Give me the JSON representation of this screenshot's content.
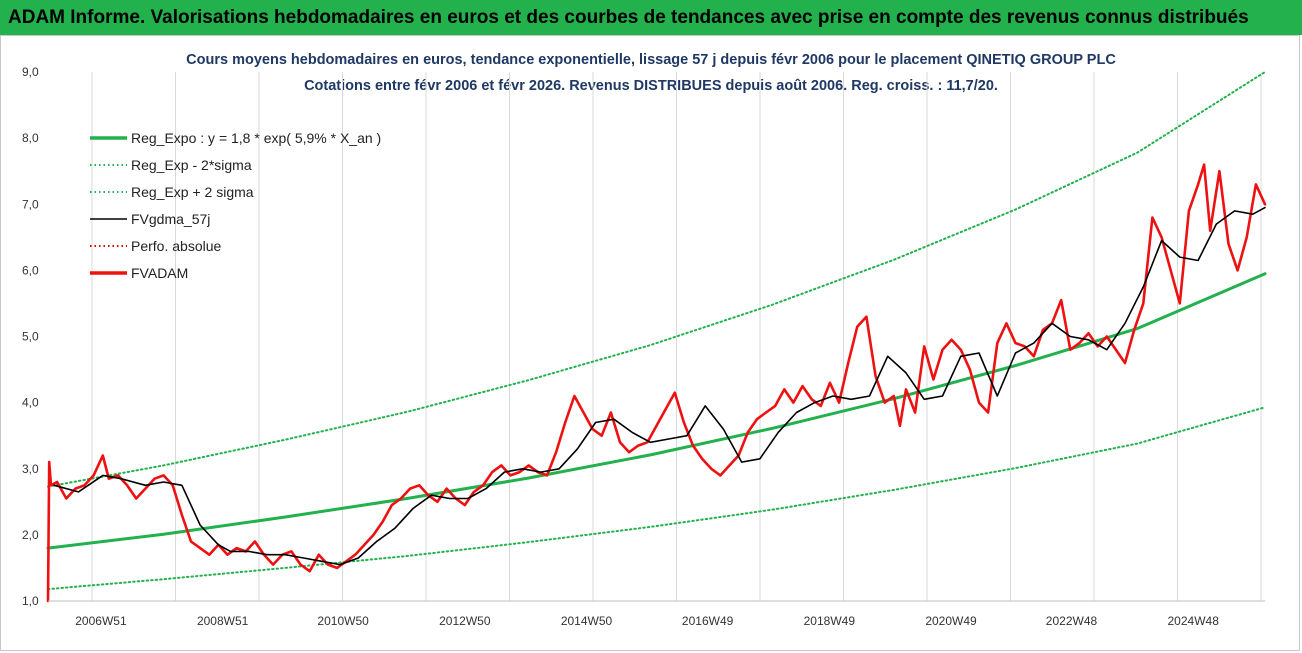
{
  "header": {
    "title": "ADAM Informe. Valorisations hebdomadaires en euros et des courbes de tendances avec prise en compte des revenus connus distribués"
  },
  "chart_data": {
    "type": "line",
    "title": "Cours moyens hebdomadaires en euros, tendance exponentielle, lissage 57 j depuis févr 2006 pour le placement QINETIQ GROUP PLC",
    "subtitle": "Cotations entre févr 2006 et févr 2026. Revenus DISTRIBUES depuis août 2006. Reg. croiss. : 11,7/20.",
    "xlabel": "",
    "ylabel": "",
    "ylim": [
      1.0,
      9.0
    ],
    "xlim": [
      2006.1,
      2026.1
    ],
    "yticks": [
      "1,0",
      "2,0",
      "3,0",
      "4,0",
      "5,0",
      "6,0",
      "7,0",
      "8,0",
      "9,0"
    ],
    "xticks": [
      {
        "label": "2006W51",
        "x": 2006.97
      },
      {
        "label": "2008W51",
        "x": 2008.97
      },
      {
        "label": "2010W50",
        "x": 2010.95
      },
      {
        "label": "2012W50",
        "x": 2012.95
      },
      {
        "label": "2014W50",
        "x": 2014.95
      },
      {
        "label": "2016W49",
        "x": 2016.94
      },
      {
        "label": "2018W49",
        "x": 2018.94
      },
      {
        "label": "2020W49",
        "x": 2020.94
      },
      {
        "label": "2022W48",
        "x": 2022.92
      },
      {
        "label": "2024W48",
        "x": 2024.92
      }
    ],
    "grid": "vertical",
    "legend_position": "top-left",
    "colors": {
      "reg_expo": "#22b14c",
      "sigma_bands": "#22b14c",
      "fvgdma": "#000000",
      "perfo": "#e00000",
      "fvadam": "#ee1111",
      "gridline": "#d9d9d9"
    },
    "series": [
      {
        "name": "Reg_Expo : y = 1,8 * exp( 5,9% *  X_an )",
        "style": "solid-thick",
        "color": "#22b14c",
        "x": [
          2006.1,
          2008,
          2010,
          2012,
          2014,
          2016,
          2018,
          2020,
          2022,
          2024,
          2026.1
        ],
        "y": [
          1.8,
          2.01,
          2.27,
          2.55,
          2.86,
          3.21,
          3.61,
          4.06,
          4.56,
          5.12,
          5.95
        ]
      },
      {
        "name": "Reg_Exp - 2*sigma",
        "style": "dotted",
        "color": "#22b14c",
        "x": [
          2006.1,
          2008,
          2010,
          2012,
          2014,
          2016,
          2018,
          2020,
          2022,
          2024,
          2026.1
        ],
        "y": [
          1.18,
          1.33,
          1.5,
          1.68,
          1.89,
          2.12,
          2.38,
          2.68,
          3.01,
          3.38,
          3.93
        ]
      },
      {
        "name": "Reg_Exp + 2 sigma",
        "style": "dotted",
        "color": "#22b14c",
        "x": [
          2006.1,
          2008,
          2010,
          2012,
          2014,
          2016,
          2018,
          2020,
          2022,
          2024,
          2026.1
        ],
        "y": [
          2.73,
          3.05,
          3.44,
          3.86,
          4.34,
          4.87,
          5.48,
          6.16,
          6.92,
          7.78,
          9.0
        ]
      },
      {
        "name": "FVgdma_57j",
        "style": "solid",
        "color": "#000000",
        "x": [
          2006.2,
          2006.6,
          2007.0,
          2007.3,
          2007.7,
          2008.0,
          2008.3,
          2008.6,
          2008.9,
          2009.1,
          2009.4,
          2009.7,
          2010.0,
          2010.3,
          2010.6,
          2010.9,
          2011.2,
          2011.5,
          2011.8,
          2012.1,
          2012.4,
          2012.7,
          2013.0,
          2013.3,
          2013.6,
          2013.9,
          2014.2,
          2014.5,
          2014.8,
          2015.1,
          2015.4,
          2015.7,
          2016.0,
          2016.3,
          2016.6,
          2016.9,
          2017.2,
          2017.5,
          2017.8,
          2018.1,
          2018.4,
          2018.7,
          2019.0,
          2019.3,
          2019.6,
          2019.9,
          2020.2,
          2020.5,
          2020.8,
          2021.1,
          2021.4,
          2021.7,
          2022.0,
          2022.3,
          2022.6,
          2022.9,
          2023.2,
          2023.5,
          2023.8,
          2024.1,
          2024.4,
          2024.7,
          2025.0,
          2025.3,
          2025.6,
          2025.9,
          2026.1
        ],
        "y": [
          2.75,
          2.65,
          2.9,
          2.85,
          2.75,
          2.8,
          2.75,
          2.15,
          1.85,
          1.75,
          1.75,
          1.7,
          1.7,
          1.65,
          1.6,
          1.55,
          1.65,
          1.9,
          2.1,
          2.4,
          2.6,
          2.55,
          2.55,
          2.7,
          2.95,
          3.0,
          2.95,
          3.0,
          3.3,
          3.7,
          3.75,
          3.55,
          3.4,
          3.45,
          3.5,
          3.95,
          3.6,
          3.1,
          3.15,
          3.55,
          3.85,
          4.0,
          4.1,
          4.05,
          4.1,
          4.7,
          4.45,
          4.05,
          4.1,
          4.7,
          4.75,
          4.1,
          4.75,
          4.9,
          5.2,
          5.0,
          4.95,
          4.8,
          5.2,
          5.75,
          6.45,
          6.2,
          6.15,
          6.7,
          6.9,
          6.85,
          6.95
        ]
      },
      {
        "name": "Perfo. absolue",
        "style": "dotted",
        "color": "#e00000",
        "x": [],
        "y": []
      },
      {
        "name": "FVADAM",
        "style": "solid-thick",
        "color": "#ee1111",
        "x": [
          2006.1,
          2006.12,
          2006.15,
          2006.25,
          2006.4,
          2006.55,
          2006.7,
          2006.85,
          2007.0,
          2007.1,
          2007.25,
          2007.4,
          2007.55,
          2007.7,
          2007.85,
          2008.0,
          2008.15,
          2008.3,
          2008.45,
          2008.6,
          2008.75,
          2008.9,
          2009.05,
          2009.2,
          2009.35,
          2009.5,
          2009.65,
          2009.8,
          2009.95,
          2010.1,
          2010.25,
          2010.4,
          2010.55,
          2010.7,
          2010.85,
          2011.0,
          2011.15,
          2011.3,
          2011.45,
          2011.6,
          2011.75,
          2011.9,
          2012.05,
          2012.2,
          2012.35,
          2012.5,
          2012.65,
          2012.8,
          2012.95,
          2013.1,
          2013.25,
          2013.4,
          2013.55,
          2013.7,
          2013.85,
          2014.0,
          2014.15,
          2014.3,
          2014.45,
          2014.6,
          2014.75,
          2014.9,
          2015.05,
          2015.2,
          2015.35,
          2015.5,
          2015.65,
          2015.8,
          2015.95,
          2016.1,
          2016.25,
          2016.4,
          2016.55,
          2016.7,
          2016.85,
          2017.0,
          2017.15,
          2017.3,
          2017.45,
          2017.6,
          2017.75,
          2017.9,
          2018.05,
          2018.2,
          2018.35,
          2018.5,
          2018.65,
          2018.8,
          2018.95,
          2019.1,
          2019.25,
          2019.4,
          2019.55,
          2019.7,
          2019.85,
          2020.0,
          2020.1,
          2020.2,
          2020.35,
          2020.5,
          2020.65,
          2020.8,
          2020.95,
          2021.1,
          2021.25,
          2021.4,
          2021.55,
          2021.7,
          2021.85,
          2022.0,
          2022.15,
          2022.3,
          2022.45,
          2022.6,
          2022.75,
          2022.9,
          2023.05,
          2023.2,
          2023.35,
          2023.5,
          2023.65,
          2023.8,
          2023.95,
          2024.1,
          2024.25,
          2024.4,
          2024.55,
          2024.7,
          2024.85,
          2025.0,
          2025.1,
          2025.2,
          2025.35,
          2025.5,
          2025.65,
          2025.8,
          2025.95,
          2026.1
        ],
        "y": [
          1.0,
          3.1,
          2.75,
          2.8,
          2.55,
          2.7,
          2.75,
          2.9,
          3.2,
          2.85,
          2.9,
          2.75,
          2.55,
          2.7,
          2.85,
          2.9,
          2.75,
          2.3,
          1.9,
          1.8,
          1.7,
          1.85,
          1.7,
          1.8,
          1.75,
          1.9,
          1.7,
          1.55,
          1.7,
          1.75,
          1.55,
          1.45,
          1.7,
          1.55,
          1.5,
          1.6,
          1.7,
          1.85,
          2.0,
          2.2,
          2.45,
          2.55,
          2.7,
          2.75,
          2.6,
          2.5,
          2.7,
          2.55,
          2.45,
          2.65,
          2.75,
          2.95,
          3.05,
          2.9,
          2.95,
          3.05,
          2.95,
          2.9,
          3.25,
          3.7,
          4.1,
          3.85,
          3.6,
          3.5,
          3.85,
          3.4,
          3.25,
          3.35,
          3.4,
          3.65,
          3.9,
          4.15,
          3.7,
          3.35,
          3.15,
          3.0,
          2.9,
          3.05,
          3.2,
          3.55,
          3.75,
          3.85,
          3.95,
          4.2,
          4.0,
          4.25,
          4.05,
          3.95,
          4.3,
          4.0,
          4.6,
          5.15,
          5.3,
          4.4,
          4.0,
          4.1,
          3.65,
          4.2,
          3.85,
          4.85,
          4.35,
          4.8,
          4.95,
          4.8,
          4.5,
          4.0,
          3.85,
          4.9,
          5.2,
          4.9,
          4.85,
          4.7,
          5.1,
          5.2,
          5.55,
          4.8,
          4.9,
          5.05,
          4.85,
          5.0,
          4.8,
          4.6,
          5.1,
          5.5,
          6.8,
          6.5,
          6.0,
          5.5,
          6.9,
          7.3,
          7.6,
          6.6,
          7.5,
          6.4,
          6.0,
          6.5,
          7.3,
          7.0
        ]
      }
    ]
  }
}
